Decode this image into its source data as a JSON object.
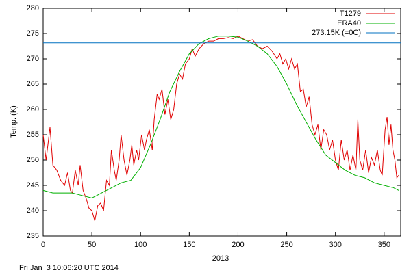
{
  "chart_data": {
    "type": "line",
    "xlabel": "2013",
    "ylabel": "Temp. (K)",
    "footer": "Fri Jan  3 10:06:20 UTC 2014",
    "xlim": [
      0,
      367
    ],
    "xticks": [
      0,
      50,
      100,
      150,
      200,
      250,
      300,
      350
    ],
    "ylim": [
      235,
      280
    ],
    "yticks": [
      235,
      240,
      245,
      250,
      255,
      260,
      265,
      270,
      275,
      280
    ],
    "legend": "top-right",
    "series": [
      {
        "name": "T1279",
        "color": "#e00000",
        "x": [
          0,
          3,
          7,
          10,
          14,
          18,
          22,
          25,
          28,
          30,
          33,
          36,
          38,
          41,
          44,
          47,
          50,
          53,
          56,
          59,
          62,
          65,
          68,
          70,
          73,
          75,
          78,
          80,
          83,
          86,
          89,
          91,
          93,
          96,
          98,
          101,
          104,
          106,
          109,
          112,
          114,
          117,
          119,
          122,
          125,
          128,
          131,
          134,
          137,
          140,
          143,
          146,
          150,
          153,
          156,
          160,
          165,
          170,
          175,
          180,
          185,
          190,
          195,
          200,
          205,
          210,
          215,
          220,
          225,
          230,
          235,
          240,
          243,
          246,
          249,
          252,
          255,
          258,
          261,
          264,
          267,
          270,
          273,
          276,
          279,
          282,
          285,
          288,
          291,
          294,
          297,
          300,
          303,
          306,
          309,
          312,
          315,
          318,
          321,
          323,
          325,
          328,
          331,
          334,
          337,
          340,
          343,
          346,
          348,
          351,
          353,
          355,
          357,
          359,
          361,
          363,
          365
        ],
        "values": [
          255,
          250,
          256.5,
          249,
          248,
          246,
          245,
          247.5,
          244,
          243.5,
          248,
          245,
          249,
          244,
          242.5,
          240.5,
          240,
          238,
          241,
          241.5,
          240,
          246,
          245,
          252,
          248,
          246,
          250,
          255,
          250,
          247,
          250,
          253,
          249,
          252,
          250,
          255,
          252,
          254,
          256,
          252,
          258,
          263,
          262,
          264,
          259,
          262,
          258,
          260,
          265,
          267,
          266,
          269,
          270,
          272,
          270.5,
          272,
          273,
          273.5,
          273.5,
          274,
          274,
          274.2,
          274,
          274.5,
          274,
          273.5,
          273.8,
          272.5,
          272,
          272.5,
          271.5,
          270,
          271,
          269,
          270,
          268,
          270,
          268,
          269,
          263.5,
          264,
          260.5,
          262.5,
          257,
          255,
          257,
          252,
          256,
          255,
          252,
          254,
          250,
          248,
          254,
          250,
          252,
          248,
          251,
          248,
          258,
          250,
          248,
          252,
          247.5,
          250.5,
          249,
          252,
          248,
          247,
          256,
          258.5,
          253,
          257,
          252,
          250,
          246.5,
          247
        ]
      },
      {
        "name": "ERA40",
        "color": "#00b000",
        "x": [
          0,
          10,
          20,
          30,
          40,
          50,
          55,
          60,
          70,
          80,
          90,
          100,
          110,
          120,
          130,
          140,
          150,
          160,
          170,
          180,
          190,
          200,
          210,
          220,
          230,
          240,
          250,
          260,
          270,
          280,
          290,
          300,
          310,
          320,
          330,
          340,
          350,
          360,
          365
        ],
        "values": [
          244,
          243.5,
          243.5,
          243.5,
          243,
          242.5,
          243,
          243.5,
          244.5,
          245.5,
          246,
          248.5,
          253,
          258,
          263.5,
          267.5,
          271,
          273,
          274,
          274.5,
          274.5,
          274.3,
          273.5,
          272.5,
          271,
          268.5,
          265,
          261,
          257.5,
          254,
          251,
          249.5,
          248,
          247,
          246.5,
          245.5,
          245,
          244.5,
          244
        ]
      }
    ],
    "reference_line": {
      "name": "273.15K (=0C)",
      "value": 273.15,
      "color": "#0070c0"
    }
  }
}
